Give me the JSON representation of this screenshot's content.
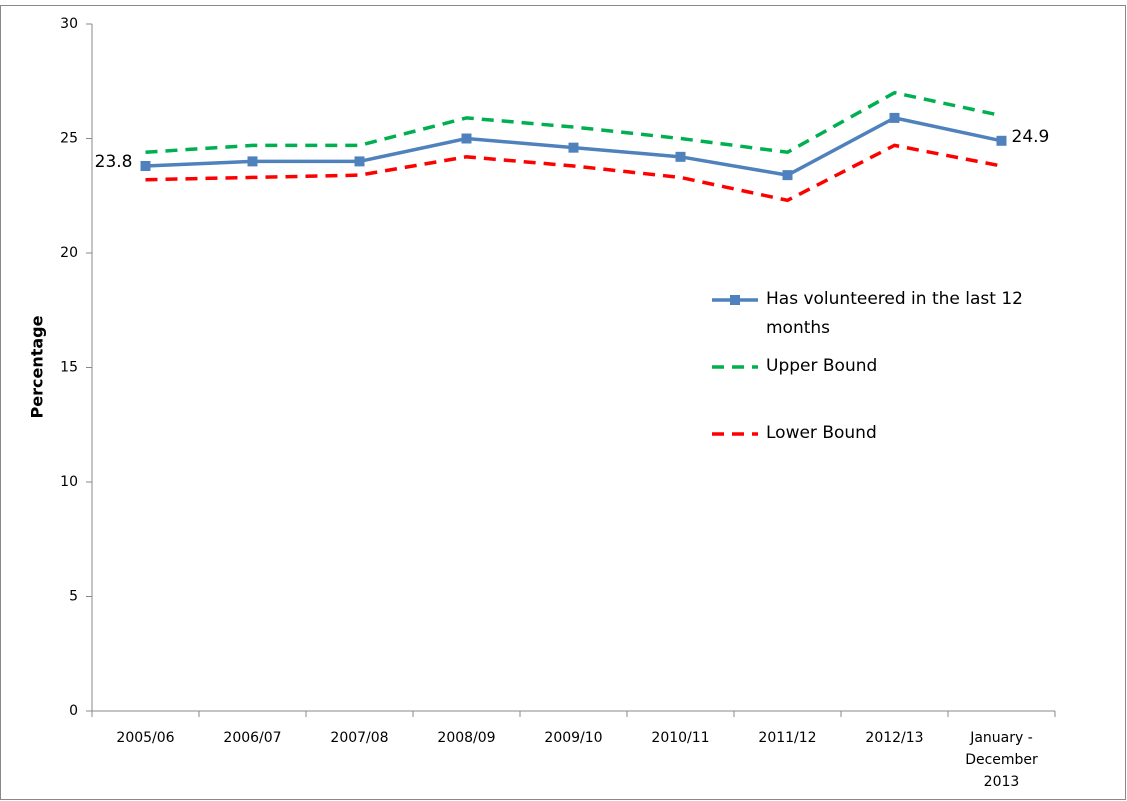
{
  "chart_data": {
    "type": "line",
    "y_label": "Percentage",
    "categories": [
      "2005/06",
      "2006/07",
      "2007/08",
      "2008/09",
      "2009/10",
      "2010/11",
      "2011/12",
      "2012/13",
      "January - December 2013"
    ],
    "series": [
      {
        "name": "Has volunteered in the last 12 months",
        "color": "#4f81bd",
        "dashed": false,
        "markers": true,
        "values": [
          23.8,
          24.0,
          24.0,
          25.0,
          24.6,
          24.2,
          23.4,
          25.9,
          24.9
        ],
        "value_labels": [
          "23.8",
          null,
          null,
          null,
          null,
          null,
          null,
          null,
          "24.9"
        ]
      },
      {
        "name": "Upper Bound",
        "color": "#00b050",
        "dashed": true,
        "markers": false,
        "values": [
          24.4,
          24.7,
          24.7,
          25.9,
          25.5,
          25.0,
          24.4,
          27.0,
          26.0
        ]
      },
      {
        "name": "Lower Bound",
        "color": "#ff0000",
        "dashed": true,
        "markers": false,
        "values": [
          23.2,
          23.3,
          23.4,
          24.2,
          23.8,
          23.3,
          22.3,
          24.7,
          23.8
        ]
      }
    ],
    "ylim": [
      0,
      30
    ],
    "yticks": [
      0,
      5,
      10,
      15,
      20,
      25,
      30
    ],
    "grid": false,
    "legend": "right"
  }
}
